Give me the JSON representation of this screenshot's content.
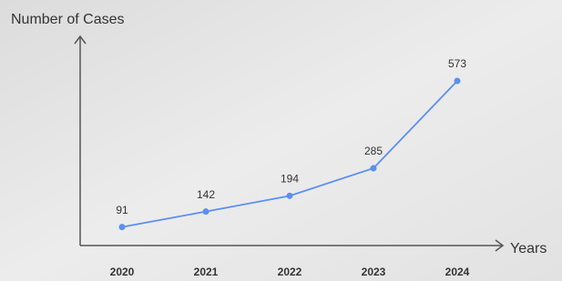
{
  "chart_data": {
    "type": "line",
    "y_label": "Number of Cases",
    "x_label": "Years",
    "categories": [
      "2020",
      "2021",
      "2022",
      "2023",
      "2024"
    ],
    "values": [
      91,
      142,
      194,
      285,
      573
    ],
    "color": "#5b8ff0",
    "ylim": [
      30,
      720
    ]
  }
}
